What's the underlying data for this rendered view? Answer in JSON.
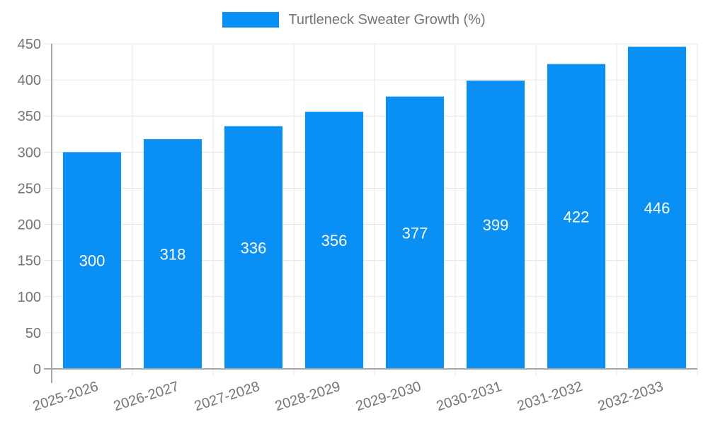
{
  "legend": {
    "label": "Turtleneck Sweater Growth (%)"
  },
  "colors": {
    "bar": "#0a90f5",
    "grid": "#e6e6e6",
    "axis_border": "#a6a6a6",
    "axis_text": "#757575",
    "legend_text": "#757575",
    "value_label": "#ffffff",
    "background": "#ffffff"
  },
  "chart_data": {
    "type": "bar",
    "title": "",
    "legend_entries": [
      "Turtleneck Sweater Growth (%)"
    ],
    "legend_position": "top-center",
    "categories": [
      "2025-2026",
      "2026-2027",
      "2027-2028",
      "2028-2029",
      "2029-2030",
      "2030-2031",
      "2031-2032",
      "2032-2033"
    ],
    "series": [
      {
        "name": "Turtleneck Sweater Growth (%)",
        "values": [
          300,
          318,
          336,
          356,
          377,
          399,
          422,
          446
        ]
      }
    ],
    "xlabel": "",
    "ylabel": "",
    "ylim": [
      0,
      450
    ],
    "ytick_step": 50,
    "yticks": [
      0,
      50,
      100,
      150,
      200,
      250,
      300,
      350,
      400,
      450
    ],
    "grid": true,
    "x_label_rotation_deg": -18,
    "value_labels": "inside-center-white"
  }
}
